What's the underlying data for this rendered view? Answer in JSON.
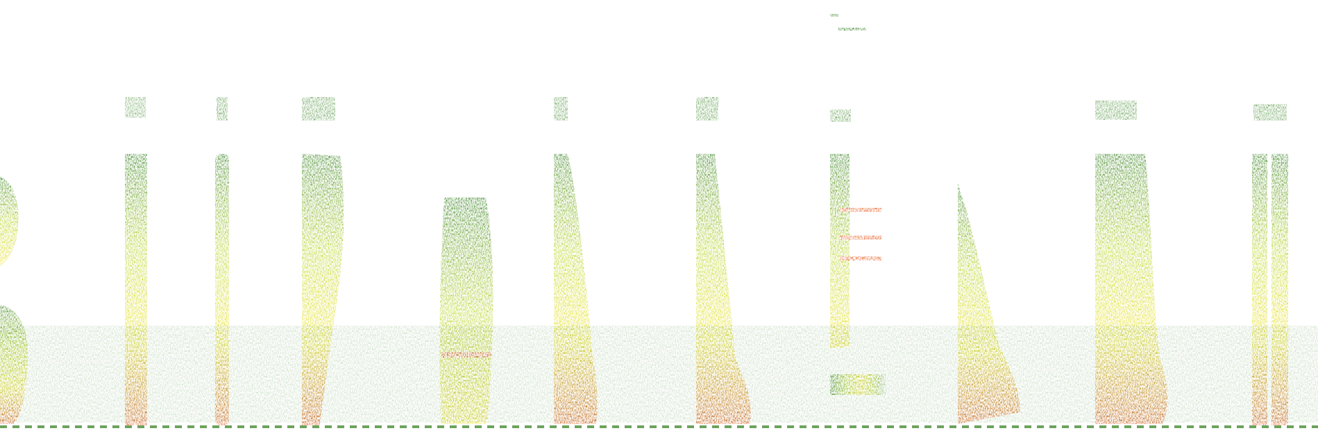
{
  "image": {
    "kind": "spectrogram",
    "background_color": "#ffffff",
    "palette": {
      "low": "#2e7d1a",
      "mid": "#b5d31f",
      "high": "#f2e21a",
      "peak": "#e8571a"
    }
  }
}
